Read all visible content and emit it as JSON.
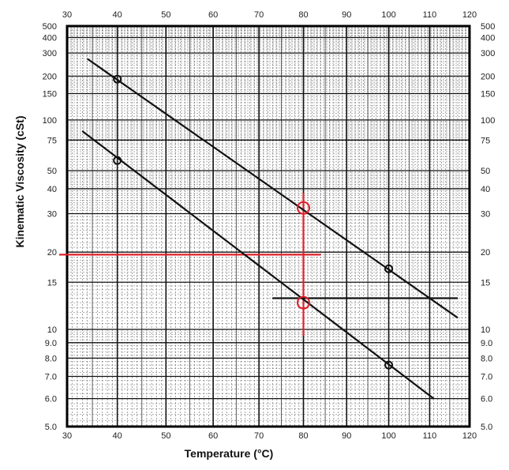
{
  "chart_data": {
    "type": "line",
    "xlabel": "Temperature (°C)",
    "ylabel": "Kinematic Viscosity (cSt)",
    "x_scale": "linear",
    "y_scale": "viscosity-temperature (log-log)",
    "xlim": [
      30,
      120
    ],
    "ylim": [
      5.0,
      500
    ],
    "grid": true,
    "x_ticks": [
      "30",
      "40",
      "50",
      "60",
      "70",
      "80",
      "90",
      "100",
      "110",
      "120"
    ],
    "y_ticks": [
      {
        "value": 500,
        "label": "500"
      },
      {
        "value": 400,
        "label": "400"
      },
      {
        "value": 300,
        "label": "300"
      },
      {
        "value": 200,
        "label": "200"
      },
      {
        "value": 150,
        "label": "150"
      },
      {
        "value": 100,
        "label": "100"
      },
      {
        "value": 75,
        "label": "75"
      },
      {
        "value": 50,
        "label": "50"
      },
      {
        "value": 40,
        "label": "40"
      },
      {
        "value": 30,
        "label": "30"
      },
      {
        "value": 20,
        "label": "20"
      },
      {
        "value": 15,
        "label": "15"
      },
      {
        "value": 10,
        "label": "10"
      },
      {
        "value": 9,
        "label": "9.0"
      },
      {
        "value": 8,
        "label": "8.0"
      },
      {
        "value": 7,
        "label": "7.0"
      },
      {
        "value": 6,
        "label": "6.0"
      },
      {
        "value": 5,
        "label": "5.0"
      }
    ],
    "series": [
      {
        "color": "#111111",
        "x": [
          34,
          117
        ],
        "y": [
          270,
          11
        ]
      },
      {
        "color": "#111111",
        "x": [
          33,
          111
        ],
        "y": [
          85,
          6.0
        ]
      }
    ],
    "points": [
      {
        "x": 40,
        "y": 190,
        "style": "circle",
        "color": "#111111"
      },
      {
        "x": 100,
        "y": 17,
        "style": "circle",
        "color": "#111111"
      },
      {
        "x": 40,
        "y": 57,
        "style": "circle",
        "color": "#111111"
      },
      {
        "x": 100,
        "y": 7.6,
        "style": "circle",
        "color": "#111111"
      },
      {
        "x": 80,
        "y": 32,
        "style": "circle",
        "color": "#e0202a"
      },
      {
        "x": 80,
        "y": 12.5,
        "style": "circle",
        "color": "#e0202a"
      }
    ],
    "annotations": [
      {
        "kind": "hline",
        "y": 19.5,
        "x0": 30,
        "x1": 84,
        "color": "#e0202a"
      },
      {
        "kind": "vline",
        "x": 80,
        "y0": 9.5,
        "y1": 38,
        "color": "#e0202a"
      },
      {
        "kind": "hline",
        "y": 13,
        "x0": 73,
        "x1": 117,
        "color": "#111111"
      }
    ]
  }
}
